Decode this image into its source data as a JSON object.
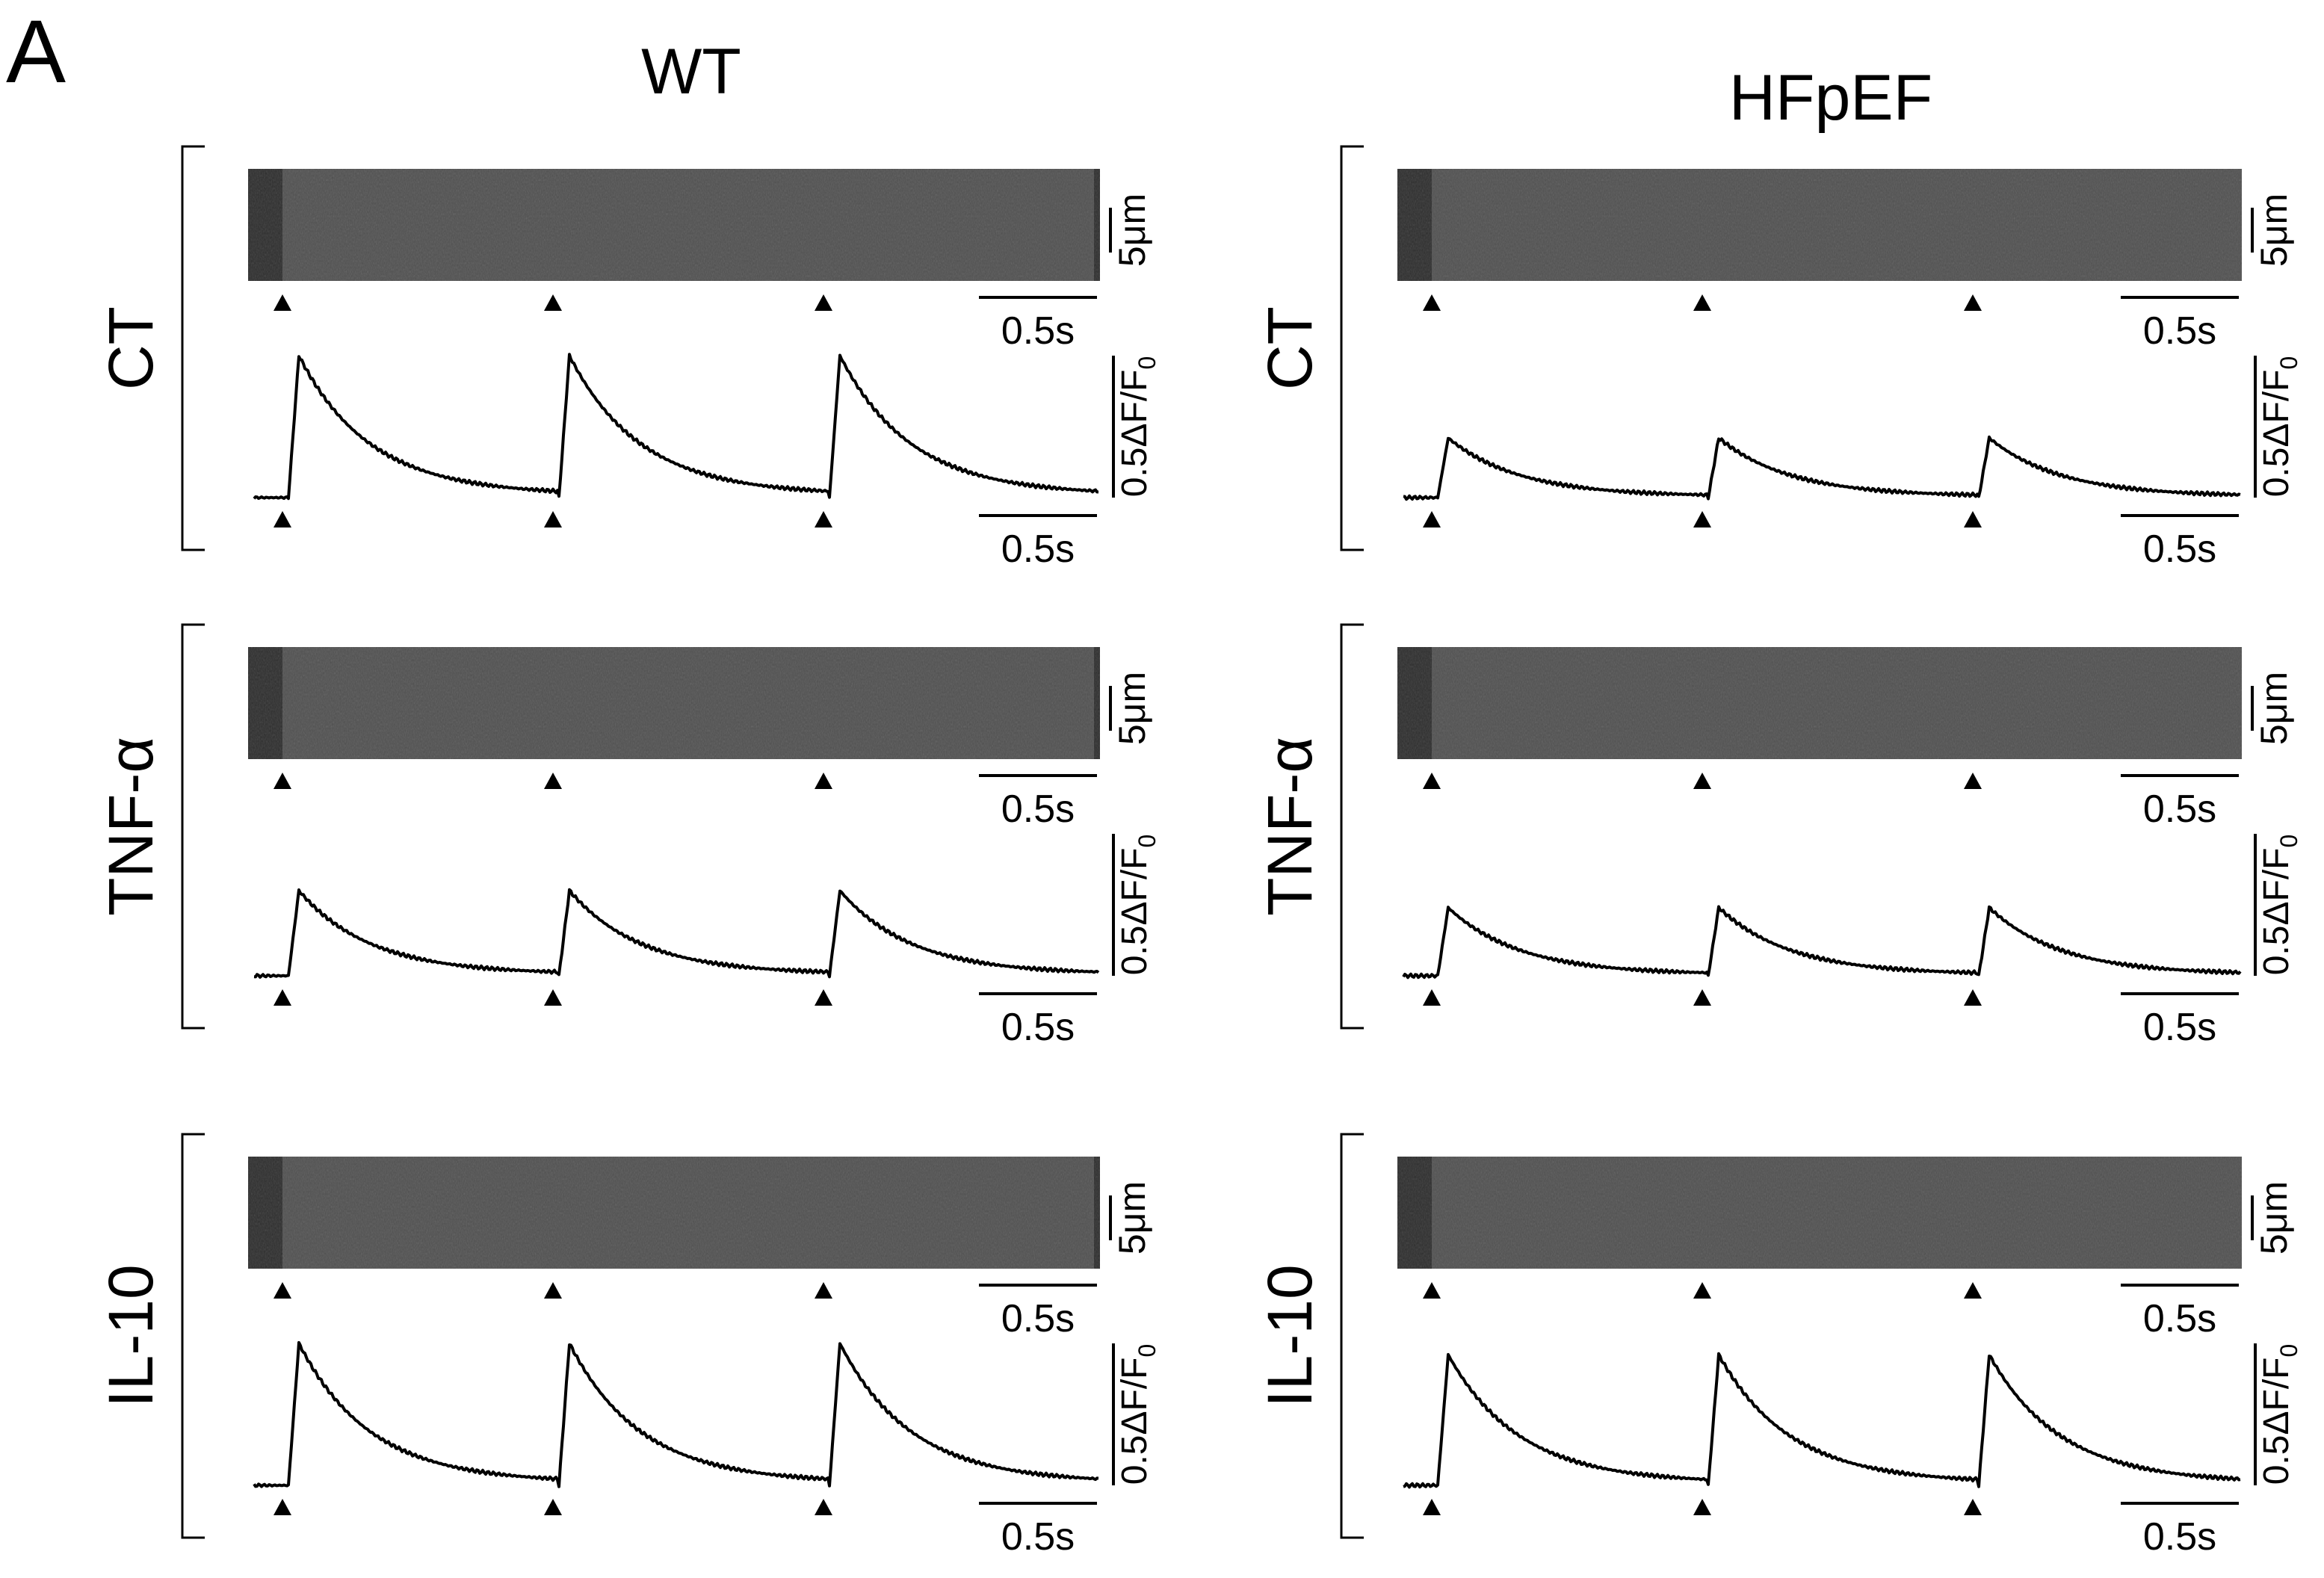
{
  "figure": {
    "panel_label": "A",
    "columns": [
      {
        "title": "WT"
      },
      {
        "title": "HFpEF"
      }
    ],
    "rows": [
      {
        "label": "CT",
        "wt_peak": 0.5,
        "hf_peak": 0.21
      },
      {
        "label": "TNF-α",
        "wt_peak": 0.3,
        "hf_peak": 0.24
      },
      {
        "label": "IL-10",
        "wt_peak": 0.5,
        "hf_peak": 0.46
      }
    ],
    "scale_bars": {
      "space": "5μm",
      "time": "0.5s",
      "amplitude": "0.5ΔF/F",
      "amplitude_subscript": "0"
    },
    "linescan_colors": {
      "background": "#2c2c2c",
      "transient_bright": "#6e6e6e"
    }
  }
}
